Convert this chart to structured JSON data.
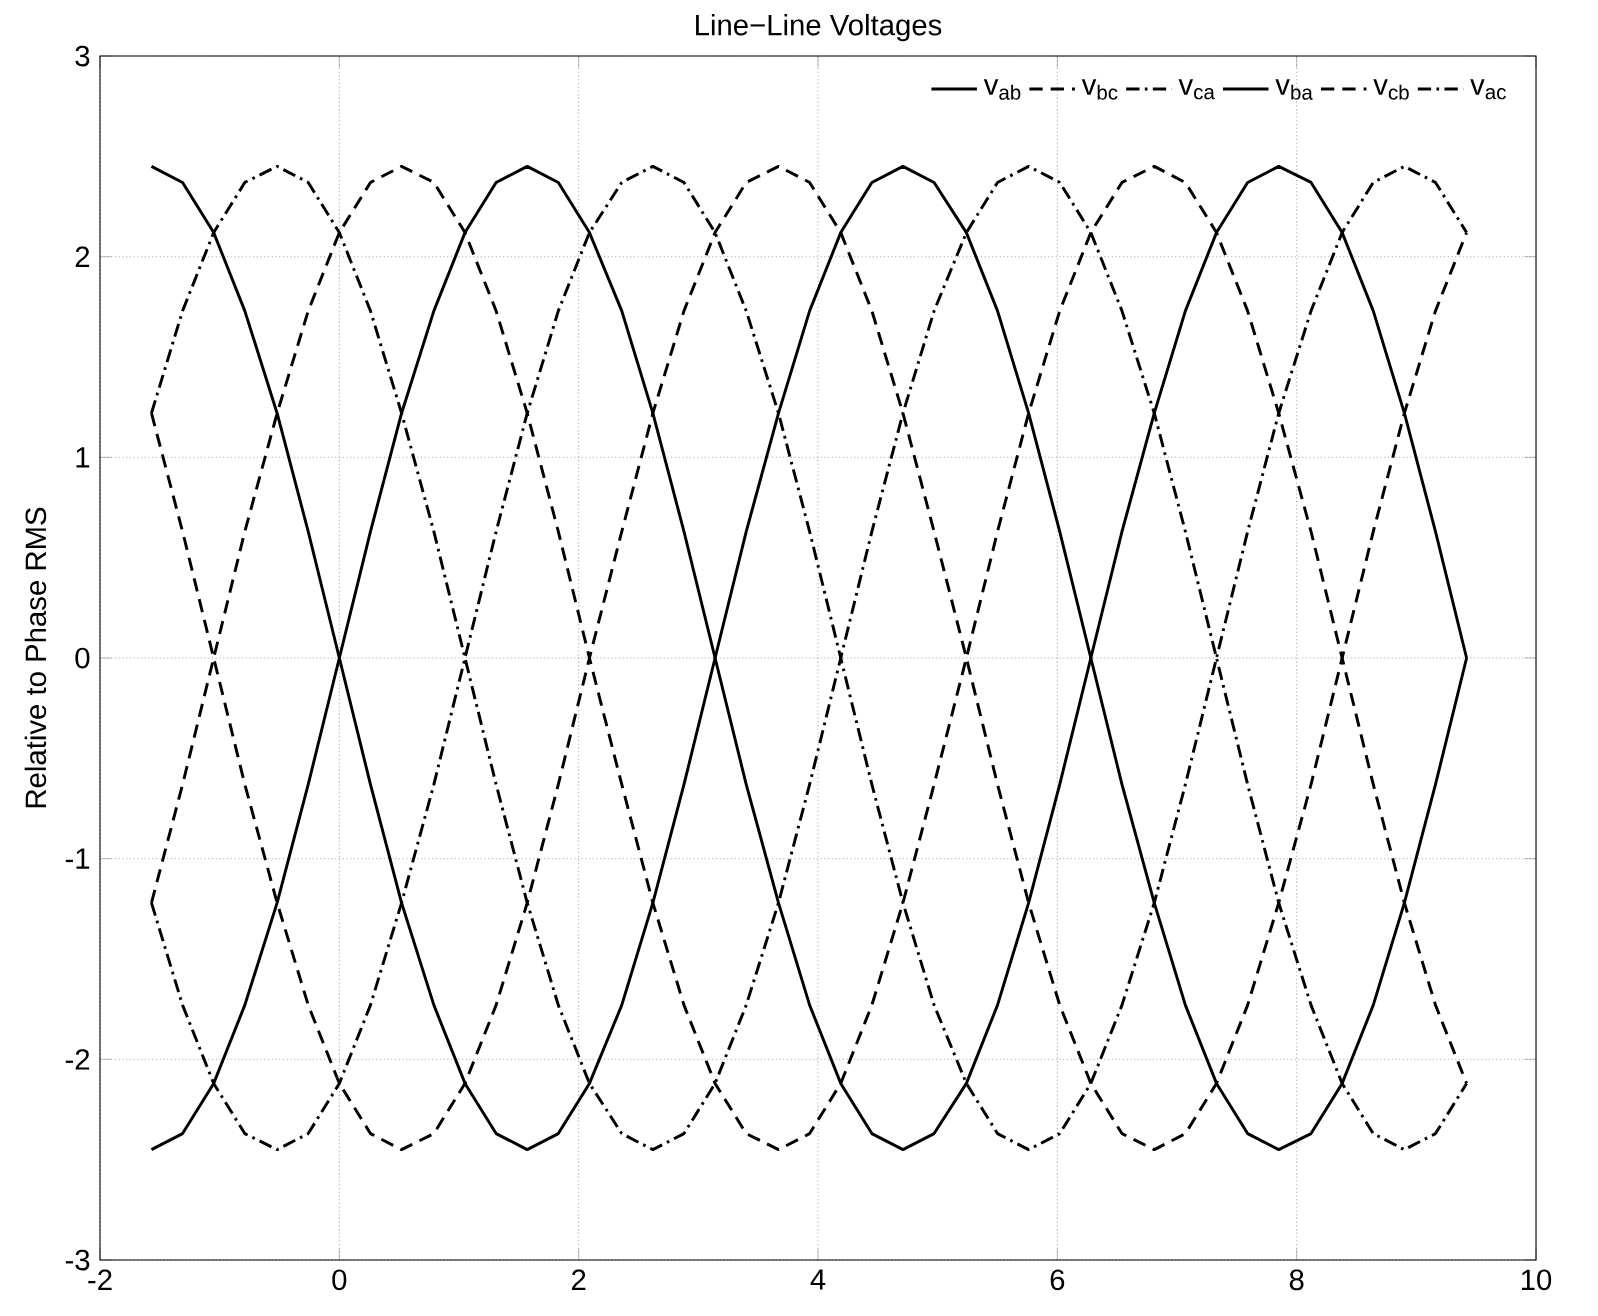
{
  "chart_data": {
    "type": "line",
    "title": "Line−Line Voltages",
    "ylabel": "Relative to Phase RMS",
    "x": [
      -1.57,
      -1.31,
      -1.05,
      -0.79,
      -0.52,
      -0.26,
      0,
      0.26,
      0.52,
      0.79,
      1.05,
      1.31,
      1.57,
      1.83,
      2.09,
      2.36,
      2.62,
      2.88,
      3.14,
      3.4,
      3.67,
      3.93,
      4.19,
      4.45,
      4.71,
      4.97,
      5.24,
      5.5,
      5.76,
      6.02,
      6.28,
      6.54,
      6.81,
      7.07,
      7.33,
      7.59,
      7.85,
      8.12,
      8.38,
      8.64,
      8.9,
      9.16,
      9.42
    ],
    "series": [
      {
        "name": "v$_{ab}$",
        "color": "#000000",
        "line_style": "solid",
        "values": [
          -2.45,
          -2.37,
          -2.12,
          -1.73,
          -1.22,
          -0.63,
          0,
          0.63,
          1.22,
          1.73,
          2.12,
          2.37,
          2.45,
          2.37,
          2.12,
          1.73,
          1.22,
          0.63,
          0,
          -0.63,
          -1.22,
          -1.73,
          -2.12,
          -2.37,
          -2.45,
          -2.37,
          -2.12,
          -1.73,
          -1.22,
          -0.63,
          0,
          0.63,
          1.22,
          1.73,
          2.12,
          2.37,
          2.45,
          2.37,
          2.12,
          1.73,
          1.22,
          0.63,
          0
        ]
      },
      {
        "name": "v$_{bc}$",
        "color": "#000000",
        "line_style": "dashed",
        "values": [
          1.22,
          0.63,
          0,
          -0.63,
          -1.22,
          -1.73,
          -2.12,
          -2.37,
          -2.45,
          -2.37,
          -2.12,
          -1.73,
          -1.22,
          -0.63,
          0,
          0.63,
          1.22,
          1.73,
          2.12,
          2.37,
          2.45,
          2.37,
          2.12,
          1.73,
          1.22,
          0.63,
          0,
          -0.63,
          -1.22,
          -1.73,
          -2.12,
          -2.37,
          -2.45,
          -2.37,
          -2.12,
          -1.73,
          -1.22,
          -0.63,
          0,
          0.63,
          1.22,
          1.73,
          2.12
        ]
      },
      {
        "name": "v$_{ca}$",
        "color": "#000000",
        "line_style": "dashdot",
        "values": [
          1.22,
          1.73,
          2.12,
          2.37,
          2.45,
          2.37,
          2.12,
          1.73,
          1.22,
          0.63,
          0,
          -0.63,
          -1.22,
          -1.73,
          -2.12,
          -2.37,
          -2.45,
          -2.37,
          -2.12,
          -1.73,
          -1.22,
          -0.63,
          0,
          0.63,
          1.22,
          1.73,
          2.12,
          2.37,
          2.45,
          2.37,
          2.12,
          1.73,
          1.22,
          0.63,
          0,
          -0.63,
          -1.22,
          -1.73,
          -2.12,
          -2.37,
          -2.45,
          -2.37,
          -2.12
        ]
      },
      {
        "name": "v$_{ba}$",
        "color": "#000000",
        "line_style": "solid",
        "values": [
          2.45,
          2.37,
          2.12,
          1.73,
          1.22,
          0.63,
          0,
          -0.63,
          -1.22,
          -1.73,
          -2.12,
          -2.37,
          -2.45,
          -2.37,
          -2.12,
          -1.73,
          -1.22,
          -0.63,
          0,
          0.63,
          1.22,
          1.73,
          2.12,
          2.37,
          2.45,
          2.37,
          2.12,
          1.73,
          1.22,
          0.63,
          0,
          -0.63,
          -1.22,
          -1.73,
          -2.12,
          -2.37,
          -2.45,
          -2.37,
          -2.12,
          -1.73,
          -1.22,
          -0.63,
          0
        ]
      },
      {
        "name": "v$_{cb}$",
        "color": "#000000",
        "line_style": "dashed",
        "values": [
          -1.22,
          -0.63,
          0,
          0.63,
          1.22,
          1.73,
          2.12,
          2.37,
          2.45,
          2.37,
          2.12,
          1.73,
          1.22,
          0.63,
          0,
          -0.63,
          -1.22,
          -1.73,
          -2.12,
          -2.37,
          -2.45,
          -2.37,
          -2.12,
          -1.73,
          -1.22,
          -0.63,
          0,
          0.63,
          1.22,
          1.73,
          2.12,
          2.37,
          2.45,
          2.37,
          2.12,
          1.73,
          1.22,
          0.63,
          0,
          -0.63,
          -1.22,
          -1.73,
          -2.12
        ]
      },
      {
        "name": "v$_{ac}$",
        "color": "#000000",
        "line_style": "dashdot",
        "values": [
          -1.22,
          -1.73,
          -2.12,
          -2.37,
          -2.45,
          -2.37,
          -2.12,
          -1.73,
          -1.22,
          -0.63,
          0,
          0.63,
          1.22,
          1.73,
          2.12,
          2.37,
          2.45,
          2.37,
          2.12,
          1.73,
          1.22,
          0.63,
          0,
          -0.63,
          -1.22,
          -1.73,
          -2.12,
          -2.37,
          -2.45,
          -2.37,
          -2.12,
          -1.73,
          -1.22,
          -0.63,
          0,
          0.63,
          1.22,
          1.73,
          2.12,
          2.37,
          2.45,
          2.37,
          2.12
        ]
      }
    ],
    "xlim": [
      -2,
      10
    ],
    "xticks": [
      -2,
      0,
      2,
      4,
      6,
      8,
      10
    ],
    "ylim": [
      -3,
      3
    ],
    "yticks": [
      -3,
      -2,
      -1,
      0,
      1,
      2,
      3
    ],
    "grid": true,
    "legend": "top right",
    "marker": "none"
  }
}
